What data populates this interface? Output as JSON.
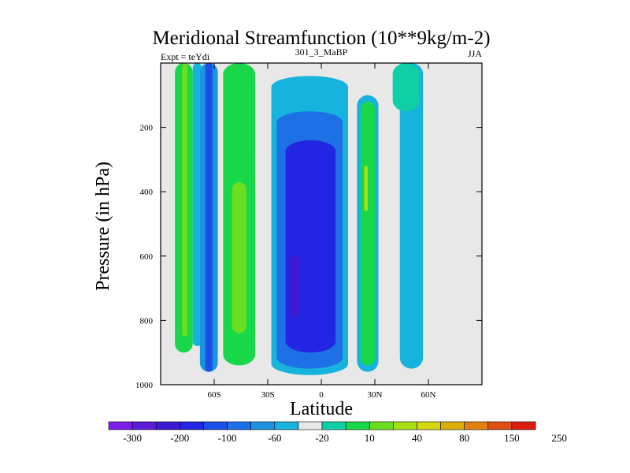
{
  "chart_data": {
    "type": "heatmap",
    "title": "Meridional Streamfunction (10**9kg/m-2)",
    "subtitle_left": "Expt = teYdi",
    "subtitle_center": "301_3_MaBP",
    "subtitle_right": "JJA",
    "xlabel": "Latitude",
    "ylabel": "Pressure (in hPa)",
    "xlim": [
      -90,
      90
    ],
    "ylim": [
      1000,
      0
    ],
    "x_ticks": [
      {
        "value": -60,
        "label": "60S"
      },
      {
        "value": -30,
        "label": "30S"
      },
      {
        "value": 0,
        "label": "0"
      },
      {
        "value": 30,
        "label": "30N"
      },
      {
        "value": 60,
        "label": "60N"
      }
    ],
    "y_ticks": [
      {
        "value": 200,
        "label": "200"
      },
      {
        "value": 400,
        "label": "400"
      },
      {
        "value": 600,
        "label": "600"
      },
      {
        "value": 800,
        "label": "800"
      },
      {
        "value": 1000,
        "label": "1000"
      }
    ],
    "colorbar": {
      "colors": [
        "#7a1ee8",
        "#5b1cd9",
        "#3c1ad1",
        "#2226e2",
        "#1c4ee8",
        "#1e70e6",
        "#1a93e0",
        "#16b4dc",
        "#e8e8e8",
        "#0ecfa6",
        "#18d84a",
        "#6ade20",
        "#a6e014",
        "#d6d80e",
        "#dcae0c",
        "#e0800e",
        "#e04e10",
        "#e01c12"
      ],
      "labels": [
        {
          "boundary": 1,
          "label": "-300"
        },
        {
          "boundary": 3,
          "label": "-200"
        },
        {
          "boundary": 5,
          "label": "-100"
        },
        {
          "boundary": 7,
          "label": "-60"
        },
        {
          "boundary": 9,
          "label": "-20"
        },
        {
          "boundary": 11,
          "label": "10"
        },
        {
          "boundary": 13,
          "label": "40"
        },
        {
          "boundary": 15,
          "label": "80"
        },
        {
          "boundary": 17,
          "label": "150"
        },
        {
          "boundary": 19,
          "label": "250"
        }
      ]
    },
    "cells": [
      {
        "lat": [
          -82,
          -72
        ],
        "p": [
          0,
          900
        ],
        "color": "#18d84a",
        "name": "cell-south-polar"
      },
      {
        "lat": [
          -78,
          -75
        ],
        "p": [
          0,
          850
        ],
        "color": "#6ade20",
        "name": "cell-south-polar-core"
      },
      {
        "lat": [
          -72,
          -67
        ],
        "p": [
          0,
          880
        ],
        "color": "#16b4dc",
        "name": "cell-south-gap"
      },
      {
        "lat": [
          -68,
          -58
        ],
        "p": [
          0,
          960
        ],
        "color": "#1a93e0",
        "name": "cell-south-ferrel-outer"
      },
      {
        "lat": [
          -65,
          -61
        ],
        "p": [
          0,
          960
        ],
        "color": "#1c4ee8",
        "name": "cell-south-ferrel-core"
      },
      {
        "lat": [
          -55,
          -37
        ],
        "p": [
          0,
          940
        ],
        "color": "#18d84a",
        "name": "cell-south-subtropical"
      },
      {
        "lat": [
          -50,
          -42
        ],
        "p": [
          370,
          840
        ],
        "color": "#6ade20",
        "name": "cell-south-subtropical-core"
      },
      {
        "lat": [
          -28,
          15
        ],
        "p": [
          40,
          970
        ],
        "color": "#16b4dc",
        "name": "cell-hadley-outer"
      },
      {
        "lat": [
          -25,
          12
        ],
        "p": [
          150,
          950
        ],
        "color": "#1e70e6",
        "name": "cell-hadley-middle"
      },
      {
        "lat": [
          -20,
          8
        ],
        "p": [
          240,
          900
        ],
        "color": "#2226e2",
        "name": "cell-hadley-inner"
      },
      {
        "lat": [
          -18,
          -12
        ],
        "p": [
          600,
          790
        ],
        "color": "#3c1ad1",
        "name": "cell-hadley-core"
      },
      {
        "lat": [
          20,
          32
        ],
        "p": [
          100,
          960
        ],
        "color": "#16b4dc",
        "name": "cell-north-subtropical-outer"
      },
      {
        "lat": [
          22,
          30
        ],
        "p": [
          120,
          940
        ],
        "color": "#18d84a",
        "name": "cell-north-subtropical"
      },
      {
        "lat": [
          24,
          26
        ],
        "p": [
          320,
          460
        ],
        "color": "#a6e014",
        "name": "cell-north-subtropical-core"
      },
      {
        "lat": [
          44,
          57
        ],
        "p": [
          0,
          950
        ],
        "color": "#16b4dc",
        "name": "cell-north-ferrel"
      },
      {
        "lat": [
          40,
          55
        ],
        "p": [
          0,
          150
        ],
        "color": "#0ecfa6",
        "name": "cell-north-ferrel-top"
      }
    ]
  }
}
